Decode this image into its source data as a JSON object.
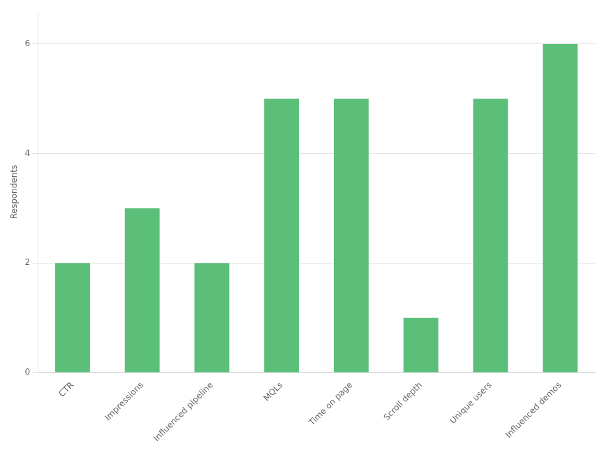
{
  "chart_data": {
    "type": "bar",
    "categories": [
      "CTR",
      "Impressions",
      "Influenced pipeline",
      "MQLs",
      "Time on page",
      "Scroll depth",
      "Unique users",
      "Influenced demos"
    ],
    "values": [
      2,
      3,
      2,
      5,
      5,
      1,
      5,
      6
    ],
    "color": "#5bbf7a",
    "ylabel": "Respondents",
    "ylim": [
      0,
      6.6
    ],
    "yticks": [
      0,
      2,
      4,
      6
    ],
    "grid": true
  }
}
